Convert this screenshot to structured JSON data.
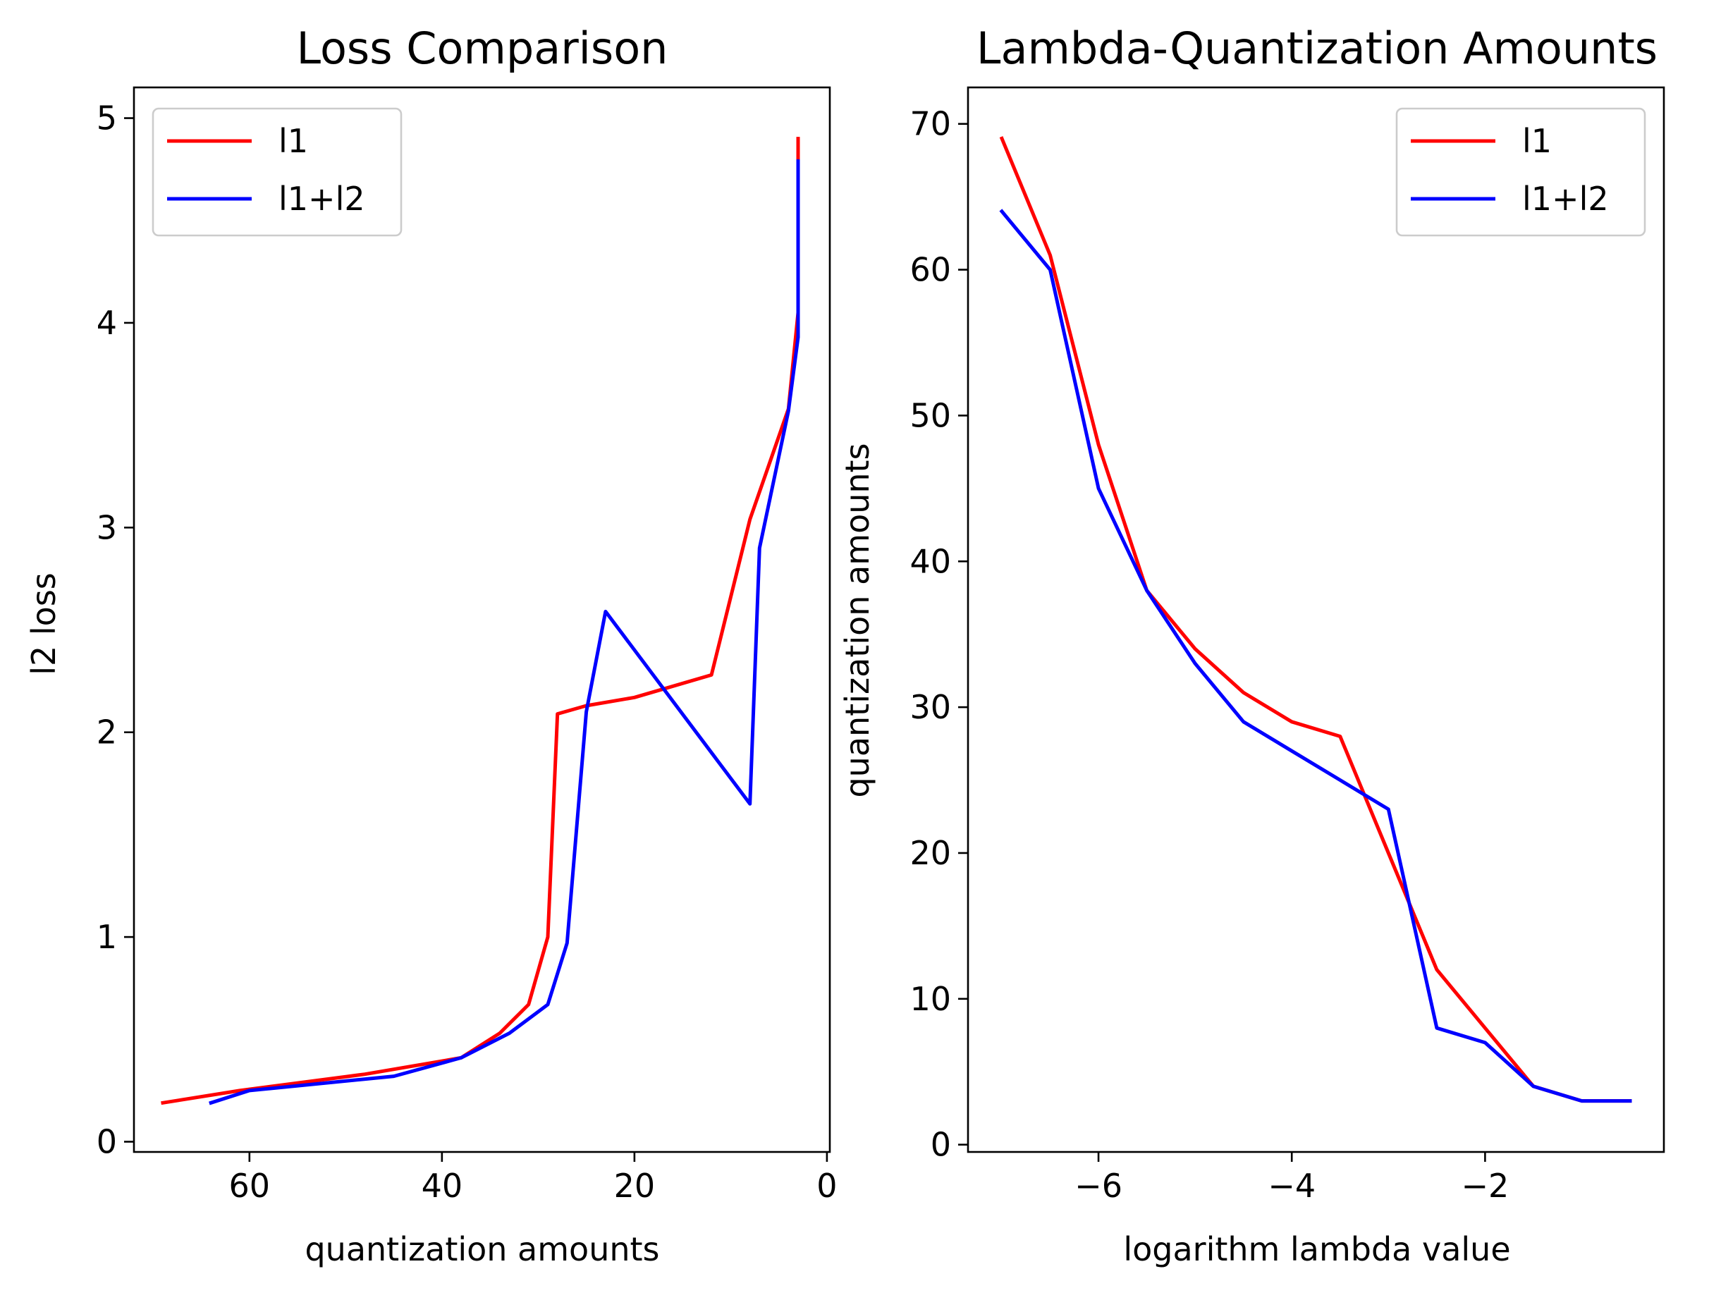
{
  "chart_data": [
    {
      "type": "line",
      "title": "Loss Comparison",
      "xlabel": "quantization amounts",
      "ylabel": "l2 loss",
      "xlim": [
        72,
        -0.3
      ],
      "ylim": [
        -0.05,
        5.15
      ],
      "xinverted": true,
      "xticks": [
        60,
        40,
        20,
        0
      ],
      "xtick_labels": [
        "60",
        "40",
        "20",
        "0"
      ],
      "yticks": [
        0,
        1,
        2,
        3,
        4,
        5
      ],
      "ytick_labels": [
        "0",
        "1",
        "2",
        "3",
        "4",
        "5"
      ],
      "grid": false,
      "legend_position": "upper left",
      "series": [
        {
          "name": "l1",
          "color": "#ff0000",
          "x": [
            69,
            61,
            48,
            38,
            34,
            31,
            29,
            28,
            25,
            20,
            12,
            8,
            4,
            3,
            3
          ],
          "y": [
            0.19,
            0.25,
            0.33,
            0.41,
            0.53,
            0.67,
            1.0,
            2.09,
            2.13,
            2.17,
            2.28,
            3.04,
            3.58,
            4.05,
            4.9
          ]
        },
        {
          "name": "l1+l2",
          "color": "#0000ff",
          "x": [
            64,
            60,
            45,
            38,
            33,
            29,
            27,
            25,
            23,
            8,
            7,
            4,
            3,
            3
          ],
          "y": [
            0.19,
            0.25,
            0.32,
            0.41,
            0.53,
            0.67,
            0.97,
            2.1,
            2.59,
            1.65,
            2.9,
            3.57,
            3.93,
            4.79
          ]
        }
      ]
    },
    {
      "type": "line",
      "title": "Lambda-Quantization Amounts",
      "xlabel": "logarithm lambda value",
      "ylabel": "quantization amounts",
      "xlim": [
        -7.35,
        -0.15
      ],
      "ylim": [
        -0.5,
        72.5
      ],
      "xticks": [
        -6,
        -4,
        -2
      ],
      "xtick_labels": [
        "−6",
        "−4",
        "−2"
      ],
      "yticks": [
        0,
        10,
        20,
        30,
        40,
        50,
        60,
        70
      ],
      "ytick_labels": [
        "0",
        "10",
        "20",
        "30",
        "40",
        "50",
        "60",
        "70"
      ],
      "grid": false,
      "legend_position": "upper right",
      "series": [
        {
          "name": "l1",
          "color": "#ff0000",
          "x": [
            -7,
            -6.5,
            -6,
            -5.5,
            -5,
            -4.5,
            -4,
            -3.5,
            -3,
            -2.5,
            -2,
            -1.5,
            -1,
            -0.5
          ],
          "y": [
            69,
            61,
            48,
            38,
            34,
            31,
            29,
            28,
            20,
            12,
            8,
            4,
            3,
            3
          ]
        },
        {
          "name": "l1+l2",
          "color": "#0000ff",
          "x": [
            -7,
            -6.5,
            -6,
            -5.5,
            -5,
            -4.5,
            -4,
            -3.5,
            -3,
            -2.5,
            -2,
            -1.5,
            -1,
            -0.5
          ],
          "y": [
            64,
            60,
            45,
            38,
            33,
            29,
            27,
            25,
            23,
            8,
            7,
            4,
            3,
            3
          ]
        }
      ]
    }
  ]
}
